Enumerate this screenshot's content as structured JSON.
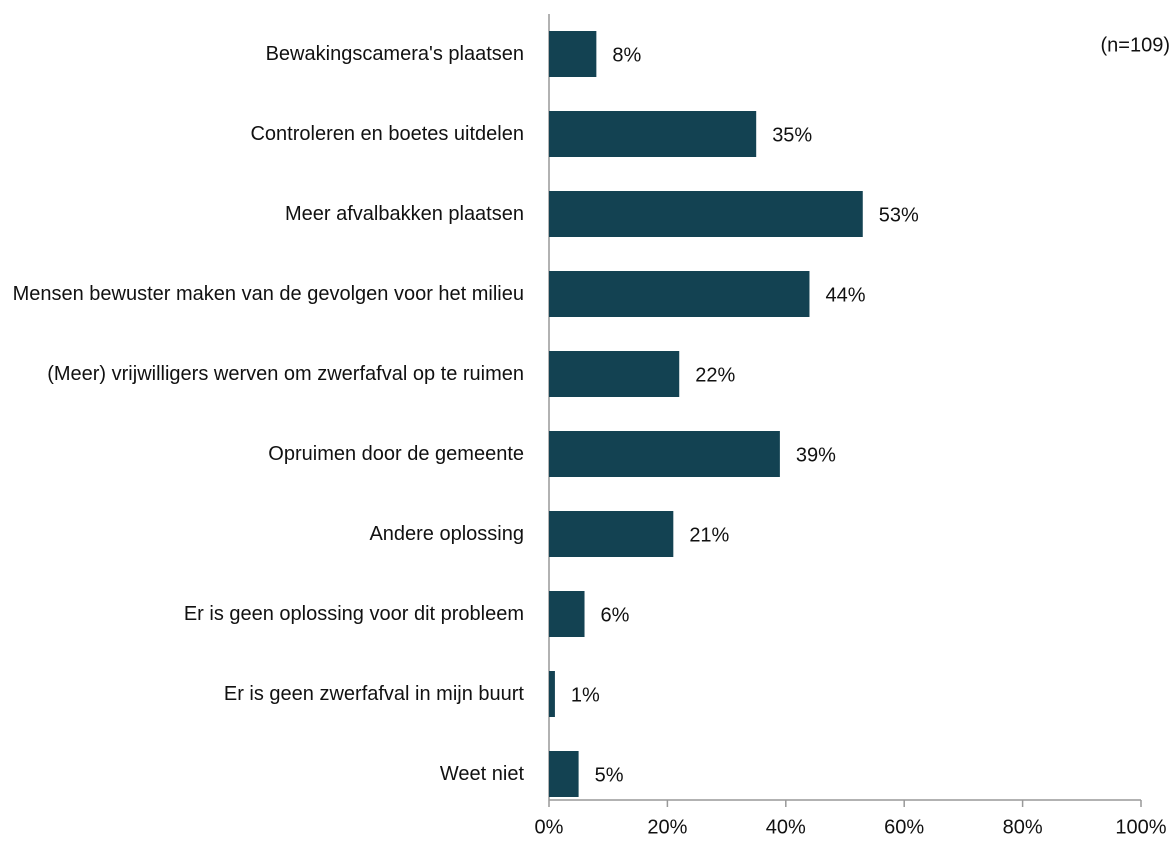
{
  "chart_data": {
    "type": "barh",
    "annotation": "(n=109)",
    "categories": [
      "Bewakingscamera's plaatsen",
      "Controleren en boetes uitdelen",
      "Meer afvalbakken plaatsen",
      "Mensen bewuster maken van de gevolgen voor het milieu",
      "(Meer) vrijwilligers werven om zwerfafval op te ruimen",
      "Opruimen door de gemeente",
      "Andere oplossing",
      "Er is geen oplossing voor dit probleem",
      "Er is geen zwerfafval in mijn buurt",
      "Weet niet"
    ],
    "values": [
      8,
      35,
      53,
      44,
      22,
      39,
      21,
      6,
      1,
      5
    ],
    "value_labels": [
      "8%",
      "35%",
      "53%",
      "44%",
      "22%",
      "39%",
      "21%",
      "6%",
      "1%",
      "5%"
    ],
    "color": "#134252",
    "xlim": [
      0,
      100
    ],
    "xticks": [
      {
        "value": 0,
        "label": "0%"
      },
      {
        "value": 20,
        "label": "20%"
      },
      {
        "value": 40,
        "label": "40%"
      },
      {
        "value": 60,
        "label": "60%"
      },
      {
        "value": 80,
        "label": "80%"
      },
      {
        "value": 100,
        "label": "100%"
      }
    ],
    "grid": false
  }
}
